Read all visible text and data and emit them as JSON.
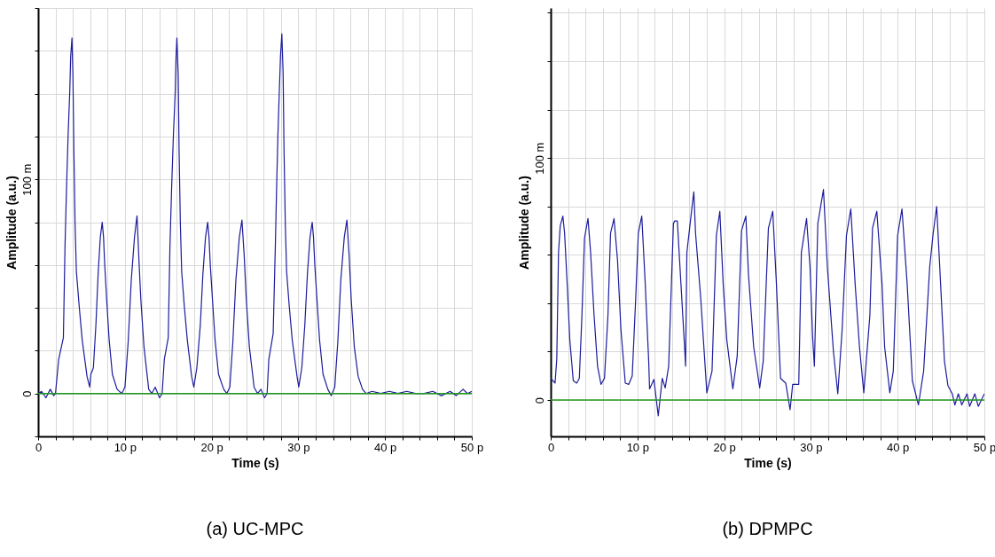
{
  "chart_data": [
    {
      "type": "line",
      "title": "(a) UC-MPC",
      "xlabel": "Time (s)",
      "ylabel": "Amplitude (a.u.)",
      "grid": true,
      "xlim": [
        0,
        50
      ],
      "ylim": [
        -20,
        180
      ],
      "xticks": [
        0,
        {
          "value": 2,
          "label": null
        },
        {
          "value": 4,
          "label": null
        },
        {
          "value": 6,
          "label": null
        },
        {
          "value": 8,
          "label": null
        },
        {
          "value": 10,
          "label": "10 p"
        },
        {
          "value": 12,
          "label": null
        },
        {
          "value": 14,
          "label": null
        },
        {
          "value": 16,
          "label": null
        },
        {
          "value": 18,
          "label": null
        },
        {
          "value": 20,
          "label": "20 p"
        },
        {
          "value": 22,
          "label": null
        },
        {
          "value": 24,
          "label": null
        },
        {
          "value": 26,
          "label": null
        },
        {
          "value": 28,
          "label": null
        },
        {
          "value": 30,
          "label": "30 p"
        },
        {
          "value": 32,
          "label": null
        },
        {
          "value": 34,
          "label": null
        },
        {
          "value": 36,
          "label": null
        },
        {
          "value": 38,
          "label": null
        },
        {
          "value": 40,
          "label": "40 p"
        },
        {
          "value": 42,
          "label": null
        },
        {
          "value": 44,
          "label": null
        },
        {
          "value": 46,
          "label": null
        },
        {
          "value": 48,
          "label": null
        },
        {
          "value": 50,
          "label": "50 p"
        }
      ],
      "yticks": [
        {
          "value": -20,
          "label": null
        },
        0,
        {
          "value": 20,
          "label": null
        },
        {
          "value": 40,
          "label": null
        },
        {
          "value": 60,
          "label": null
        },
        {
          "value": 80,
          "label": null
        },
        {
          "value": 100,
          "label": "100 m"
        },
        {
          "value": 120,
          "label": null
        },
        {
          "value": 140,
          "label": null
        },
        {
          "value": 160,
          "label": null
        },
        {
          "value": 180,
          "label": null
        }
      ],
      "ref_lines": [
        {
          "axis": "y",
          "value": 0,
          "color": "#1f9a1f"
        }
      ],
      "series": [
        {
          "color": "#1c1c9c",
          "x": [
            0,
            0.4,
            0.9,
            1.4,
            1.8,
            2,
            2.37,
            2.91,
            3.1,
            3.28,
            3.46,
            3.64,
            3.75,
            3.9,
            4.01,
            4.12,
            4.26,
            4.41,
            4.73,
            5.08,
            5.64,
            5.94,
            6.08,
            6.37,
            6.66,
            6.92,
            7.17,
            7.39,
            7.54,
            7.68,
            7.9,
            8.19,
            8.56,
            9.1,
            9.65,
            10.01,
            10.38,
            10.74,
            11.11,
            11.4,
            11.65,
            11.84,
            12.2,
            12.75,
            13.1,
            13.5,
            14,
            14.3,
            14.55,
            15,
            15.2,
            15.4,
            15.6,
            15.8,
            15.9,
            16,
            16.15,
            16.25,
            16.4,
            16.55,
            16.85,
            17.2,
            17.7,
            17.95,
            18.3,
            18.7,
            19,
            19.3,
            19.55,
            19.7,
            19.85,
            20.1,
            20.4,
            20.8,
            21.4,
            21.75,
            22.1,
            22.45,
            22.8,
            23.2,
            23.5,
            23.75,
            24,
            24.35,
            24.9,
            25.3,
            25.7,
            26.1,
            26.4,
            26.6,
            27.1,
            27.35,
            27.5,
            27.65,
            27.8,
            27.95,
            28.1,
            28.25,
            28.35,
            28.5,
            28.65,
            28.95,
            29.3,
            29.85,
            30.05,
            30.4,
            30.75,
            31.05,
            31.35,
            31.6,
            31.75,
            31.9,
            32.15,
            32.45,
            32.85,
            33.4,
            33.8,
            34.2,
            34.55,
            34.9,
            35.3,
            35.6,
            35.85,
            36.1,
            36.45,
            36.9,
            37.4,
            37.8,
            38.5,
            39.5,
            40.5,
            41.5,
            42.5,
            43.5,
            44.5,
            45.5,
            46.5,
            47.5,
            48.2,
            49,
            49.5,
            50
          ],
          "values": [
            0,
            1,
            -2,
            2,
            -1,
            0,
            16,
            26,
            69,
            97,
            121,
            140,
            157,
            166,
            149,
            114,
            79,
            57,
            41,
            25,
            8,
            3,
            9,
            12,
            32,
            56,
            73,
            80,
            73,
            60,
            44,
            25,
            9,
            2,
            0,
            3,
            24,
            53,
            73,
            83,
            60,
            44,
            22,
            2,
            0,
            3,
            -2,
            0,
            16,
            26,
            69,
            97,
            121,
            140,
            157,
            166,
            149,
            114,
            79,
            57,
            41,
            25,
            8,
            3,
            12,
            32,
            56,
            73,
            80,
            73,
            60,
            44,
            25,
            9,
            2,
            0,
            3,
            24,
            53,
            73,
            81,
            65,
            44,
            22,
            3,
            0,
            2,
            -2,
            0,
            16,
            28,
            69,
            97,
            121,
            140,
            158,
            168,
            149,
            114,
            79,
            57,
            41,
            25,
            8,
            3,
            12,
            32,
            56,
            73,
            80,
            73,
            60,
            44,
            25,
            9,
            2,
            -1,
            3,
            24,
            53,
            73,
            81,
            65,
            44,
            22,
            8,
            2,
            0,
            1,
            0,
            1,
            0,
            1,
            0,
            0,
            1,
            -1,
            1,
            -1,
            2,
            0,
            1
          ]
        }
      ]
    },
    {
      "type": "line",
      "title": "(b) DPMPC",
      "xlabel": "Time (s)",
      "ylabel": "Amplitude (a.u.)",
      "grid": true,
      "xlim": [
        0,
        50
      ],
      "ylim": [
        -15,
        162
      ],
      "xticks": [
        0,
        {
          "value": 2,
          "label": null
        },
        {
          "value": 4,
          "label": null
        },
        {
          "value": 6,
          "label": null
        },
        {
          "value": 8,
          "label": null
        },
        {
          "value": 10,
          "label": "10 p"
        },
        {
          "value": 12,
          "label": null
        },
        {
          "value": 14,
          "label": null
        },
        {
          "value": 16,
          "label": null
        },
        {
          "value": 18,
          "label": null
        },
        {
          "value": 20,
          "label": "20 p"
        },
        {
          "value": 22,
          "label": null
        },
        {
          "value": 24,
          "label": null
        },
        {
          "value": 26,
          "label": null
        },
        {
          "value": 28,
          "label": null
        },
        {
          "value": 30,
          "label": "30 p"
        },
        {
          "value": 32,
          "label": null
        },
        {
          "value": 34,
          "label": null
        },
        {
          "value": 36,
          "label": null
        },
        {
          "value": 38,
          "label": null
        },
        {
          "value": 40,
          "label": "40 p"
        },
        {
          "value": 42,
          "label": null
        },
        {
          "value": 44,
          "label": null
        },
        {
          "value": 46,
          "label": null
        },
        {
          "value": 48,
          "label": null
        },
        {
          "value": 50,
          "label": "50 p"
        }
      ],
      "yticks": [
        0,
        {
          "value": 20,
          "label": null
        },
        {
          "value": 40,
          "label": null
        },
        {
          "value": 60,
          "label": null
        },
        {
          "value": 80,
          "label": null
        },
        {
          "value": 100,
          "label": "100 m"
        },
        {
          "value": 120,
          "label": null
        },
        {
          "value": 140,
          "label": null
        },
        {
          "value": 160,
          "label": null
        }
      ],
      "ref_lines": [
        {
          "axis": "y",
          "value": 0,
          "color": "#1f9a1f"
        }
      ],
      "series": [
        {
          "color": "#1c1c9c",
          "x": [
            0,
            0.5,
            0.7,
            0.9,
            1.1,
            1.4,
            1.6,
            1.9,
            2.2,
            2.6,
            3,
            3.3,
            3.6,
            3.9,
            4.3,
            4.6,
            5,
            5.4,
            5.8,
            6.2,
            6.6,
            6.9,
            7.3,
            7.7,
            8.1,
            8.6,
            9,
            9.4,
            9.8,
            10.1,
            10.5,
            10.9,
            11.3,
            11.4,
            11.9,
            12.4,
            12.86,
            13.2,
            13.6,
            14.15,
            14.3,
            14.6,
            15.45,
            15.55,
            15.7,
            16.3,
            16.5,
            16.7,
            17.3,
            18,
            18.6,
            19.1,
            19.5,
            19.9,
            20.3,
            21,
            21.5,
            22,
            22.5,
            22.8,
            23.4,
            24.1,
            24.5,
            25.1,
            25.6,
            26,
            26.5,
            27.1,
            27.6,
            27.9,
            28.6,
            28.9,
            29.5,
            29.9,
            30.2,
            30.4,
            30.8,
            31.45,
            31.9,
            32.6,
            33.1,
            33.6,
            34.1,
            34.6,
            35.1,
            35.6,
            36.1,
            36.8,
            37.1,
            37.6,
            38.2,
            38.5,
            39.1,
            39.5,
            40,
            40.5,
            41.1,
            41.7,
            42.4,
            43,
            43.7,
            44.1,
            44.5,
            44.8,
            45.4,
            45.8,
            46.3,
            46.6,
            47,
            47.4,
            48,
            48.3,
            48.9,
            49.3,
            50
          ],
          "values": [
            9,
            7,
            17,
            61,
            72,
            76,
            69,
            48,
            25,
            8,
            7,
            9,
            35,
            67,
            75,
            61,
            35,
            14,
            6.5,
            9,
            35,
            69,
            75,
            58,
            29,
            7,
            6.5,
            10,
            42,
            69,
            76,
            48,
            16,
            4.6,
            8.5,
            -6.5,
            9,
            5,
            14,
            73,
            74,
            74,
            21,
            14,
            61,
            80,
            86,
            69,
            42,
            3,
            12,
            68,
            78,
            47,
            25,
            4.6,
            18,
            70,
            76,
            52,
            22,
            5,
            16,
            71,
            78,
            50,
            9,
            7,
            -4,
            6.5,
            6.5,
            61,
            75,
            55,
            26,
            14,
            73,
            87,
            55,
            20,
            2.6,
            29,
            68,
            79,
            48,
            22,
            3,
            35,
            71,
            78,
            48,
            22,
            3,
            12,
            68,
            79,
            48,
            8,
            -2,
            12,
            55,
            69,
            80,
            59,
            16,
            6,
            2.6,
            -2,
            2.6,
            -2,
            2.6,
            -2.6,
            2.6,
            -2.6,
            2.6
          ]
        }
      ]
    }
  ]
}
